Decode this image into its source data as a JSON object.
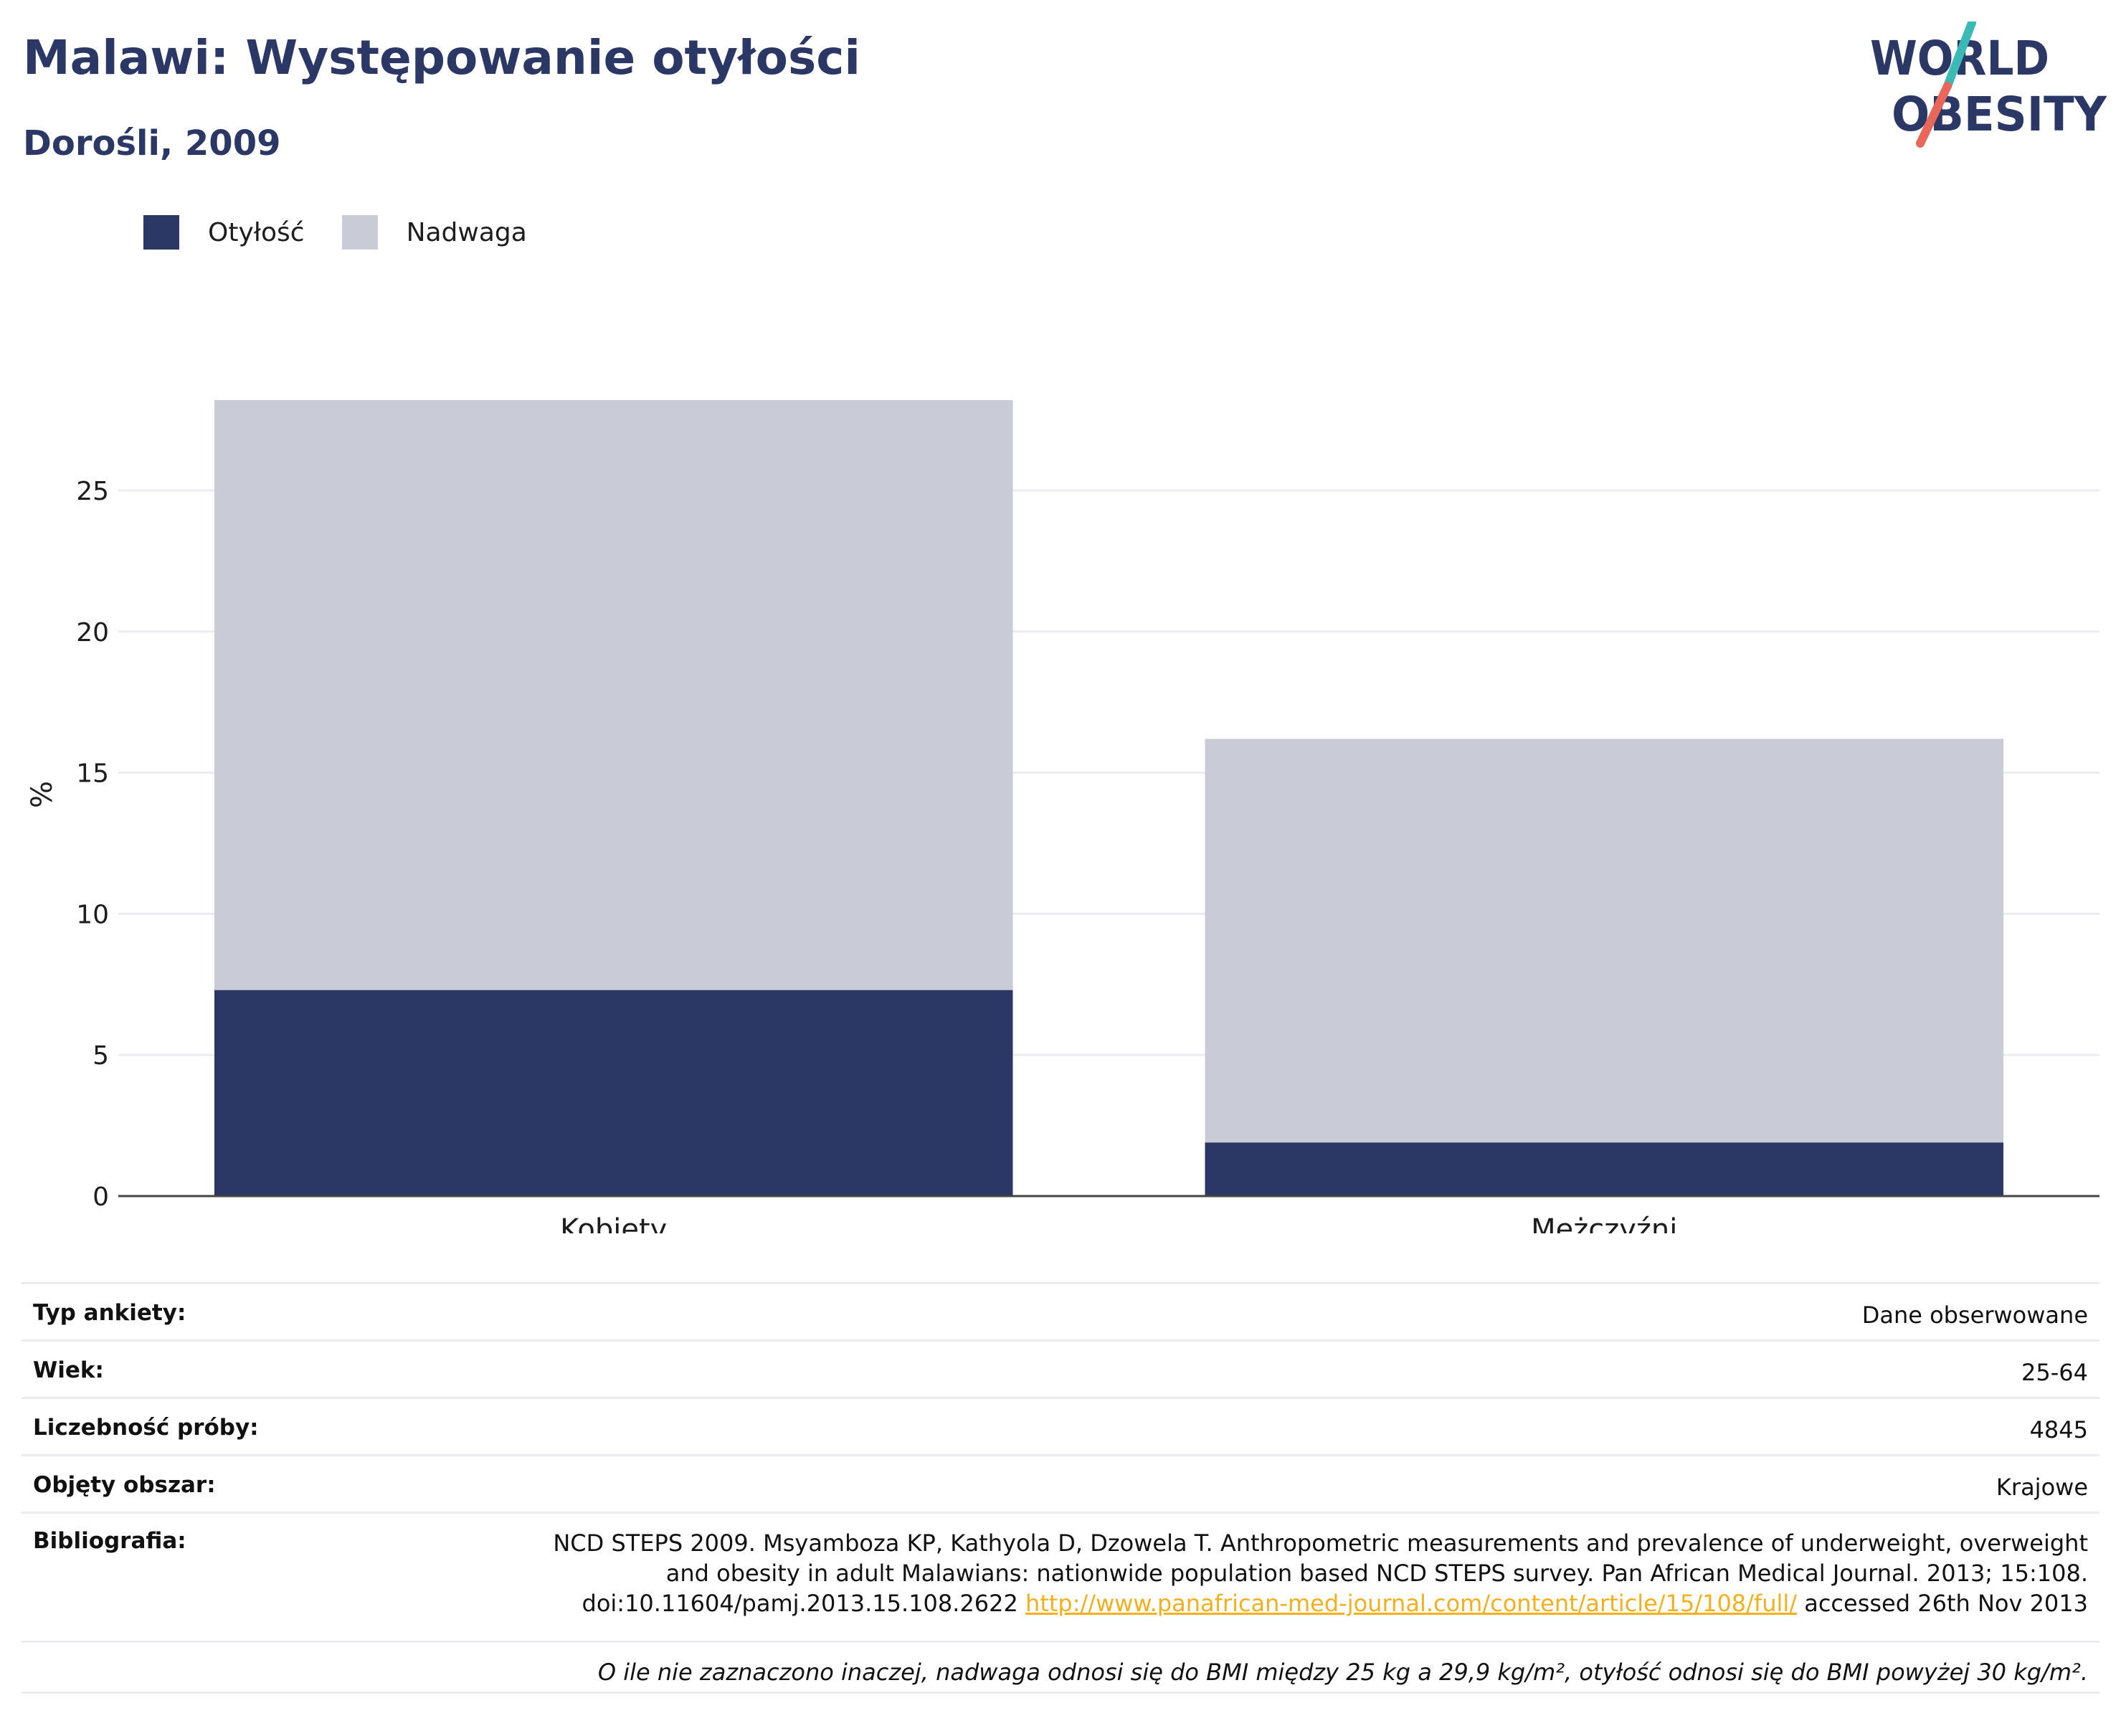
{
  "header": {
    "title": "Malawi: Występowanie otyłości",
    "subtitle": "Dorośli, 2009"
  },
  "logo": {
    "line1": "WORLD",
    "line2": "OBESITY",
    "colors": {
      "text": "#2b3765",
      "slash_top": "#3bb9b5",
      "slash_bottom": "#e8665a"
    }
  },
  "legend": [
    {
      "label": "Otyłość",
      "color": "#2b3765"
    },
    {
      "label": "Nadwaga",
      "color": "#c9ccd7"
    }
  ],
  "chart_data": {
    "type": "bar",
    "stacked": true,
    "categories": [
      "Kobiety",
      "Mężczyźni"
    ],
    "series": [
      {
        "name": "Otyłość",
        "values": [
          7.3,
          1.9
        ],
        "color": "#2b3765"
      },
      {
        "name": "Nadwaga",
        "values": [
          20.9,
          14.3
        ],
        "color": "#c9ccd7"
      }
    ],
    "ylabel": "%",
    "ylim": [
      0,
      28.2
    ],
    "yticks": [
      0,
      5,
      10,
      15,
      20,
      25
    ],
    "grid": true,
    "legend_position": "top-left"
  },
  "info": {
    "rows": [
      {
        "label": "Typ ankiety:",
        "value": "Dane obserwowane"
      },
      {
        "label": "Wiek:",
        "value": "25-64"
      },
      {
        "label": "Liczebność próby:",
        "value": "4845"
      },
      {
        "label": "Objęty obszar:",
        "value": "Krajowe"
      }
    ],
    "bibliography": {
      "label": "Bibliografia:",
      "line1": "NCD STEPS 2009. Msyamboza KP, Kathyola D, Dzowela T. Anthropometric measurements and prevalence of underweight, overweight",
      "line2": "and obesity in adult Malawians: nationwide population based NCD STEPS survey. Pan African Medical Journal. 2013; 15:108.",
      "line3_prefix": "doi:10.11604/pamj.2013.15.108.2622",
      "link": "http://www.panafrican-med-journal.com/content/article/15/108/full/",
      "line3_suffix": "accessed 26th Nov 2013"
    },
    "footnote": "O ile nie zaznaczono inaczej, nadwaga odnosi się do BMI między 25 kg a 29,9 kg/m², otyłość odnosi się do BMI powyżej 30 kg/m²."
  }
}
